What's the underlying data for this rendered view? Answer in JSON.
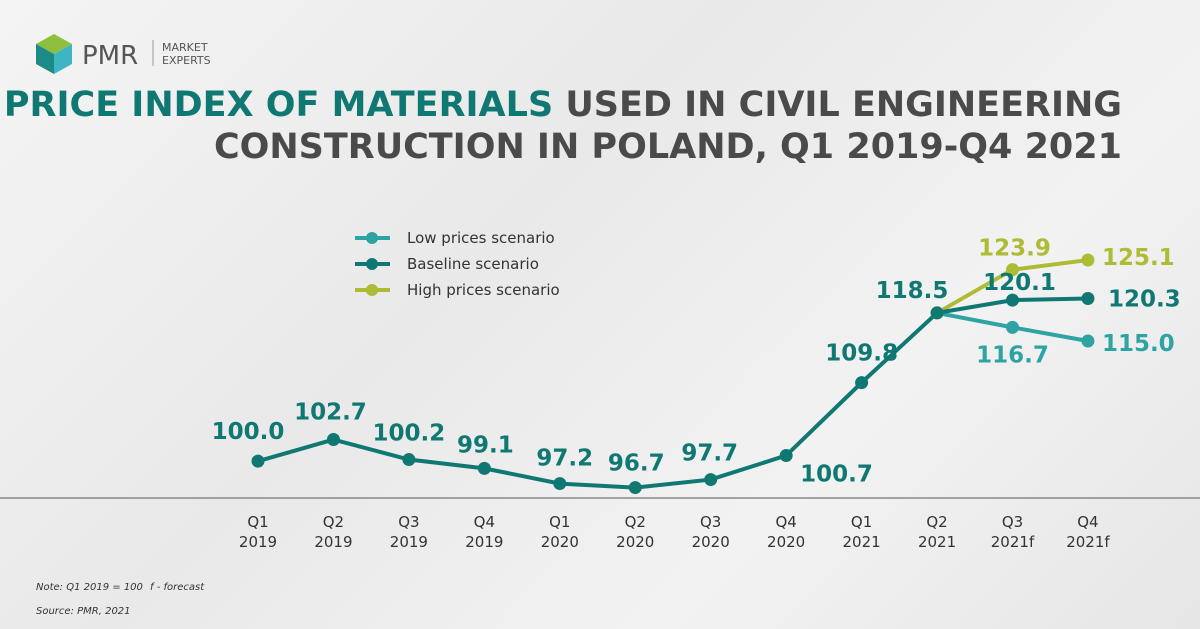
{
  "brand": {
    "name": "PMR",
    "tagline_1": "MARKET",
    "tagline_2": "EXPERTS"
  },
  "chart_data": {
    "type": "line",
    "title": [
      "PRICE INDEX OF MATERIALS",
      "USED IN CIVIL ENGINEERING",
      "CONSTRUCTION IN POLAND, Q1 2019-Q4 2021"
    ],
    "categories": [
      "Q1 2019",
      "Q2 2019",
      "Q3 2019",
      "Q4 2019",
      "Q1 2020",
      "Q2 2020",
      "Q3 2020",
      "Q4 2020",
      "Q1 2021",
      "Q2 2021",
      "Q3 2021f",
      "Q4 2021f"
    ],
    "series": [
      {
        "name": "Low prices scenario",
        "color": "#2ea3a3",
        "values": [
          null,
          null,
          null,
          null,
          null,
          null,
          null,
          null,
          null,
          118.5,
          116.7,
          115.0
        ],
        "value_labels": [
          null,
          null,
          null,
          null,
          null,
          null,
          null,
          null,
          null,
          null,
          "116.7",
          "115.0"
        ]
      },
      {
        "name": "Baseline scenario",
        "color": "#107873",
        "values": [
          100.0,
          102.7,
          100.2,
          99.1,
          97.2,
          96.7,
          97.7,
          100.7,
          109.8,
          118.5,
          120.1,
          120.3
        ],
        "value_labels": [
          "100.0",
          "102.7",
          "100.2",
          "99.1",
          "97.2",
          "96.7",
          "97.7",
          "100.7",
          "109.8",
          "118.5",
          "120.1",
          "120.3"
        ]
      },
      {
        "name": "High prices scenario",
        "color": "#aebb35",
        "values": [
          null,
          null,
          null,
          null,
          null,
          null,
          null,
          null,
          null,
          118.5,
          123.9,
          125.1
        ],
        "value_labels": [
          null,
          null,
          null,
          null,
          null,
          null,
          null,
          null,
          null,
          null,
          "123.9",
          "125.1"
        ]
      }
    ],
    "ylim": [
      95.4,
      130.1
    ],
    "notes": [
      "Note: Q1 2019 = 100",
      "f - forecast",
      "Source: PMR, 2021"
    ]
  }
}
